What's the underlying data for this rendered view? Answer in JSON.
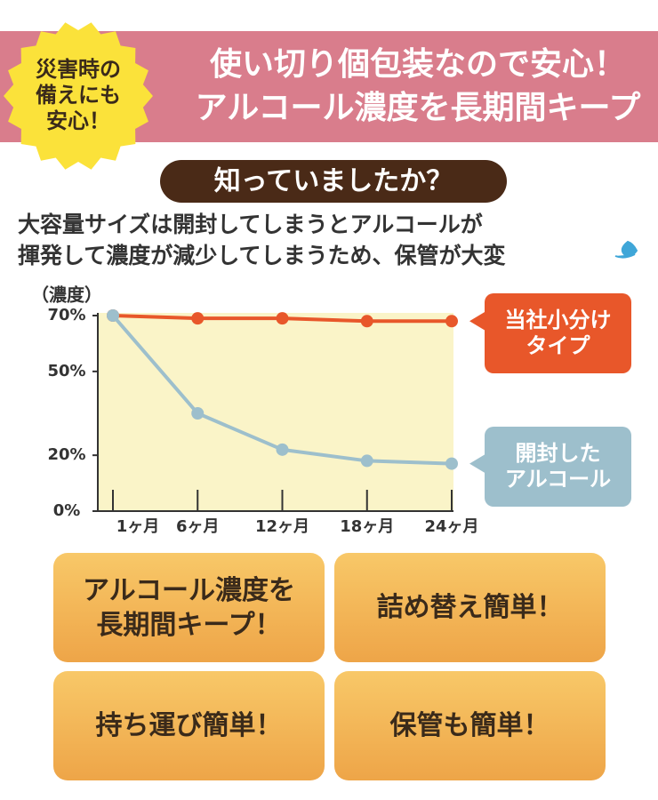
{
  "header": {
    "badge": "災害時の\n備えにも\n安心！",
    "title": "使い切り個包装なので安心！\nアルコール濃度を長期間キープ"
  },
  "intro": {
    "heading": "知っていましたか？",
    "text": "大容量サイズは開封してしまうとアルコールが\n揮発して濃度が減少してしまうため、保管が大変"
  },
  "chart_data": {
    "type": "line",
    "y_label": "（濃度）",
    "categories": [
      "1ヶ月",
      "6ヶ月",
      "12ヶ月",
      "18ヶ月",
      "24ヶ月"
    ],
    "series": [
      {
        "name": "当社小分け\nタイプ",
        "color": "#e8572a",
        "values": [
          70,
          69,
          69,
          68,
          68
        ]
      },
      {
        "name": "開封した\nアルコール",
        "color": "#9dbfcc",
        "values": [
          70,
          35,
          22,
          18,
          17
        ]
      }
    ],
    "ylim": [
      0,
      70
    ],
    "yticks": [
      {
        "value": 0,
        "label": "0%"
      },
      {
        "value": 20,
        "label": "20%"
      },
      {
        "value": 50,
        "label": "50%"
      },
      {
        "value": 70,
        "label": "70%"
      }
    ],
    "background": "#faf4c8"
  },
  "features": [
    "アルコール濃度を\n長期間キープ！",
    "詰め替え簡単！",
    "持ち運び簡単！",
    "保管も簡単！"
  ]
}
